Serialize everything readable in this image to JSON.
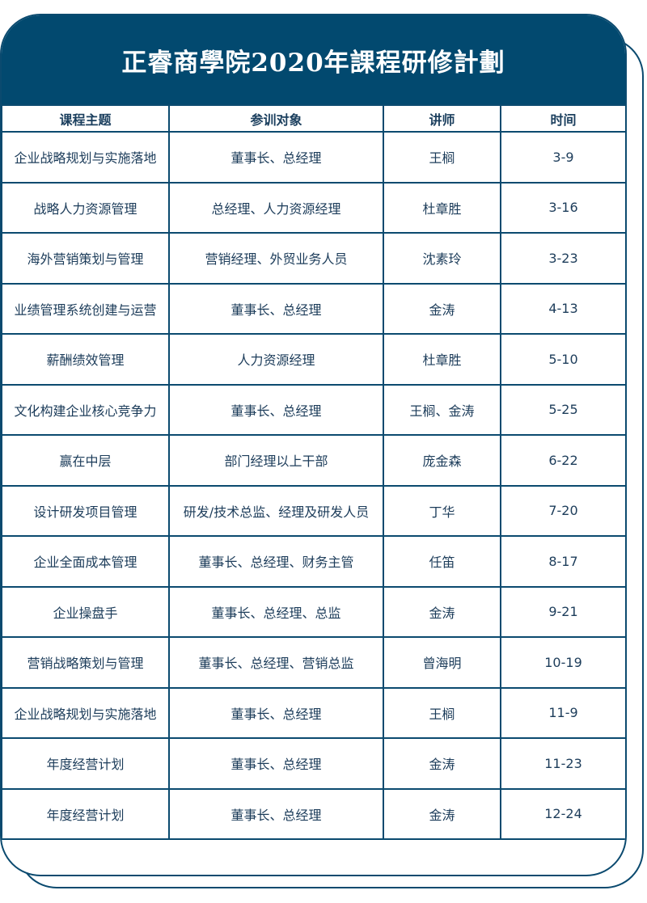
{
  "title": "正睿商學院2020年課程研修計劃",
  "colors": {
    "primary": "#02496f",
    "text": "#1c3c5a"
  },
  "columns": [
    "课程主题",
    "参训对象",
    "讲师",
    "时间"
  ],
  "rows": [
    [
      "企业战略规划与实施落地",
      "董事长、总经理",
      "王榈",
      "3-9"
    ],
    [
      "战略人力资源管理",
      "总经理、人力资源经理",
      "杜章胜",
      "3-16"
    ],
    [
      "海外营销策划与管理",
      "营销经理、外贸业务人员",
      "沈素玲",
      "3-23"
    ],
    [
      "业绩管理系统创建与运营",
      "董事长、总经理",
      "金涛",
      "4-13"
    ],
    [
      "薪酬绩效管理",
      "人力资源经理",
      "杜章胜",
      "5-10"
    ],
    [
      "文化构建企业核心竞争力",
      "董事长、总经理",
      "王榈、金涛",
      "5-25"
    ],
    [
      "赢在中层",
      "部门经理以上干部",
      "庞金森",
      "6-22"
    ],
    [
      "设计研发项目管理",
      "研发/技术总监、经理及研发人员",
      "丁华",
      "7-20"
    ],
    [
      "企业全面成本管理",
      "董事长、总经理、财务主管",
      "任笛",
      "8-17"
    ],
    [
      "企业操盘手",
      "董事长、总经理、总监",
      "金涛",
      "9-21"
    ],
    [
      "营销战略策划与管理",
      "董事长、总经理、营销总监",
      "曾海明",
      "10-19"
    ],
    [
      "企业战略规划与实施落地",
      "董事长、总经理",
      "王榈",
      "11-9"
    ],
    [
      "年度经营计划",
      "董事长、总经理",
      "金涛",
      "11-23"
    ],
    [
      "年度经营计划",
      "董事长、总经理",
      "金涛",
      "12-24"
    ]
  ]
}
